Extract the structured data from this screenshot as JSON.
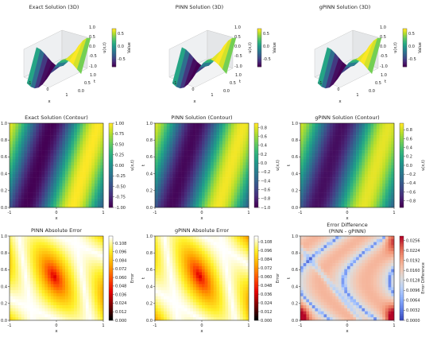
{
  "chart_data": [
    {
      "type": "surface3d",
      "title": "Exact Solution (3D)",
      "xlabel": "x",
      "ylabel": "t",
      "zlabel": "u(x,t)",
      "x_ticks": [
        "-1",
        "0",
        "1"
      ],
      "t_ticks": [
        "0.0",
        "0.5",
        "1.0"
      ],
      "z_ticks": [
        "-1.0",
        "-0.5",
        "0.0",
        "0.5",
        "1.0"
      ],
      "colorbar": {
        "label": "Value",
        "ticks": [
          "0.5",
          "0.0",
          "-0.5"
        ]
      }
    },
    {
      "type": "surface3d",
      "title": "PINN Solution (3D)",
      "xlabel": "x",
      "ylabel": "t",
      "zlabel": "u(x,t)",
      "x_ticks": [
        "-1",
        "0",
        "1"
      ],
      "t_ticks": [
        "0.0",
        "0.5",
        "1.0"
      ],
      "z_ticks": [
        "-1.0",
        "-0.5",
        "0.0",
        "0.5",
        "1.0"
      ],
      "colorbar": {
        "label": "Value",
        "ticks": [
          "0.5",
          "0.0",
          "-0.5"
        ]
      }
    },
    {
      "type": "surface3d",
      "title": "gPINN Solution (3D)",
      "xlabel": "x",
      "ylabel": "t",
      "zlabel": "u(x,t)",
      "x_ticks": [
        "-1",
        "0",
        "1"
      ],
      "t_ticks": [
        "0.0",
        "0.5",
        "1.0"
      ],
      "z_ticks": [
        "-1.0",
        "-0.5",
        "0.0",
        "0.5",
        "1.0"
      ],
      "colorbar": {
        "label": "Value",
        "ticks": [
          "0.5",
          "0.0",
          "-0.5"
        ]
      }
    },
    {
      "type": "heatmap",
      "title": "Exact Solution (Contour)",
      "xlabel": "x",
      "ylabel": "t",
      "colormap": "viridis",
      "x_ticks": [
        "-1",
        "0",
        "1"
      ],
      "y_ticks": [
        "0.0",
        "0.2",
        "0.4",
        "0.6",
        "0.8",
        "1.0"
      ],
      "xlim": [
        -1,
        1
      ],
      "ylim": [
        0,
        1
      ],
      "colorbar": {
        "label": "u(x,t)",
        "range": [
          -1.0,
          1.0
        ],
        "ticks": [
          "1.00",
          "0.75",
          "0.50",
          "0.25",
          "0.00",
          "-0.25",
          "-0.50",
          "-0.75",
          "-1.00"
        ]
      }
    },
    {
      "type": "heatmap",
      "title": "PINN Solution (Contour)",
      "xlabel": "x",
      "ylabel": "t",
      "colormap": "viridis",
      "x_ticks": [
        "-1",
        "0",
        "1"
      ],
      "y_ticks": [
        "0.0",
        "0.2",
        "0.4",
        "0.6",
        "0.8",
        "1.0"
      ],
      "xlim": [
        -1,
        1
      ],
      "ylim": [
        0,
        1
      ],
      "colorbar": {
        "label": "u(x,t)",
        "range": [
          -1.0,
          0.9
        ],
        "ticks": [
          "0.8",
          "0.6",
          "0.4",
          "0.2",
          "0.0",
          "−0.2",
          "−0.4",
          "−0.6",
          "−0.8",
          "−1.0"
        ]
      }
    },
    {
      "type": "heatmap",
      "title": "gPINN Solution (Contour)",
      "xlabel": "x",
      "ylabel": "t",
      "colormap": "viridis",
      "x_ticks": [
        "-1",
        "0",
        "1"
      ],
      "y_ticks": [
        "0.0",
        "0.2",
        "0.4",
        "0.6",
        "0.8",
        "1.0"
      ],
      "xlim": [
        -1,
        1
      ],
      "ylim": [
        0,
        1
      ],
      "colorbar": {
        "label": "u(x,t)",
        "range": [
          -0.95,
          0.95
        ],
        "ticks": [
          "0.8",
          "0.6",
          "0.4",
          "0.2",
          "0.0",
          "−0.2",
          "−0.4",
          "−0.6",
          "−0.8"
        ]
      }
    },
    {
      "type": "heatmap",
      "title": "PINN Absolute Error",
      "xlabel": "x",
      "ylabel": "t",
      "colormap": "hot",
      "x_ticks": [
        "-1",
        "0",
        "1"
      ],
      "y_ticks": [
        "0.0",
        "0.2",
        "0.4",
        "0.6",
        "0.8",
        "1.0"
      ],
      "xlim": [
        -1,
        1
      ],
      "ylim": [
        0,
        1
      ],
      "colorbar": {
        "label": "Error",
        "range": [
          0,
          0.118
        ],
        "ticks": [
          "0.108",
          "0.096",
          "0.084",
          "0.072",
          "0.060",
          "0.048",
          "0.036",
          "0.024",
          "0.012",
          "0.000"
        ]
      }
    },
    {
      "type": "heatmap",
      "title": "gPINN Absolute Error",
      "xlabel": "x",
      "ylabel": "t",
      "colormap": "hot",
      "x_ticks": [
        "-1",
        "0",
        "1"
      ],
      "y_ticks": [
        "0.0",
        "0.2",
        "0.4",
        "0.6",
        "0.8",
        "1.0"
      ],
      "xlim": [
        -1,
        1
      ],
      "ylim": [
        0,
        1
      ],
      "colorbar": {
        "label": "Error",
        "range": [
          0,
          0.116
        ],
        "ticks": [
          "0.108",
          "0.096",
          "0.084",
          "0.072",
          "0.060",
          "0.048",
          "0.036",
          "0.024",
          "0.012",
          "0.000"
        ]
      }
    },
    {
      "type": "heatmap",
      "title": "Error Difference\n(PINN - gPINN)",
      "title_lines": [
        "Error Difference",
        "(PINN - gPINN)"
      ],
      "xlabel": "x",
      "ylabel": "t",
      "colormap": "coolwarm",
      "x_ticks": [
        "-1",
        "0",
        "1"
      ],
      "y_ticks": [
        "0.0",
        "0.2",
        "0.4",
        "0.6",
        "0.8",
        "1.0"
      ],
      "xlim": [
        -1,
        1
      ],
      "ylim": [
        0,
        1
      ],
      "colorbar": {
        "label": "Error Difference",
        "range": [
          0,
          0.027
        ],
        "ticks": [
          "0.0256",
          "0.0224",
          "0.0192",
          "0.0160",
          "0.0128",
          "0.0096",
          "0.0064",
          "0.0032",
          "0.0000"
        ]
      }
    }
  ]
}
